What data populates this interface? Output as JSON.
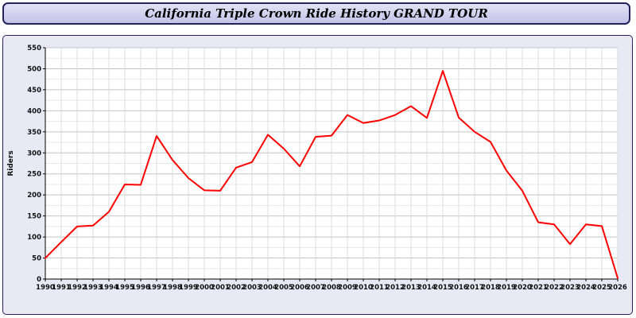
{
  "header": {
    "title": "California Triple Crown Ride History GRAND TOUR"
  },
  "colors": {
    "line": "#ff0000",
    "panel_background": "#e9e9f6",
    "title_bar_border": "#23235f",
    "grid_major": "#c4c4c4",
    "grid_minor": "#e8e8e8",
    "grid_vertical": "#dcdcdc",
    "axis": "#000000"
  },
  "chart_data": {
    "type": "line",
    "title": "California Triple Crown Ride History GRAND TOUR",
    "xlabel": "",
    "ylabel": "Riders",
    "ylim": [
      0,
      550
    ],
    "ytick_step": 50,
    "yticks": [
      0,
      50,
      100,
      150,
      200,
      250,
      300,
      350,
      400,
      450,
      500,
      550
    ],
    "grid": true,
    "legend": "none",
    "line_color": "#ff0000",
    "x": [
      1990,
      1991,
      1992,
      1993,
      1994,
      1995,
      1996,
      1997,
      1998,
      1999,
      2000,
      2001,
      2002,
      2003,
      2004,
      2005,
      2006,
      2007,
      2008,
      2009,
      2010,
      2011,
      2012,
      2013,
      2014,
      2015,
      2016,
      2017,
      2018,
      2019,
      2020,
      2021,
      2022,
      2023,
      2024,
      2025,
      2026
    ],
    "values": [
      50,
      88,
      125,
      127,
      160,
      225,
      224,
      340,
      283,
      240,
      211,
      210,
      265,
      278,
      343,
      310,
      268,
      338,
      341,
      390,
      371,
      377,
      390,
      411,
      383,
      495,
      384,
      350,
      326,
      258,
      210,
      135,
      130,
      83,
      130,
      126,
      2
    ]
  }
}
